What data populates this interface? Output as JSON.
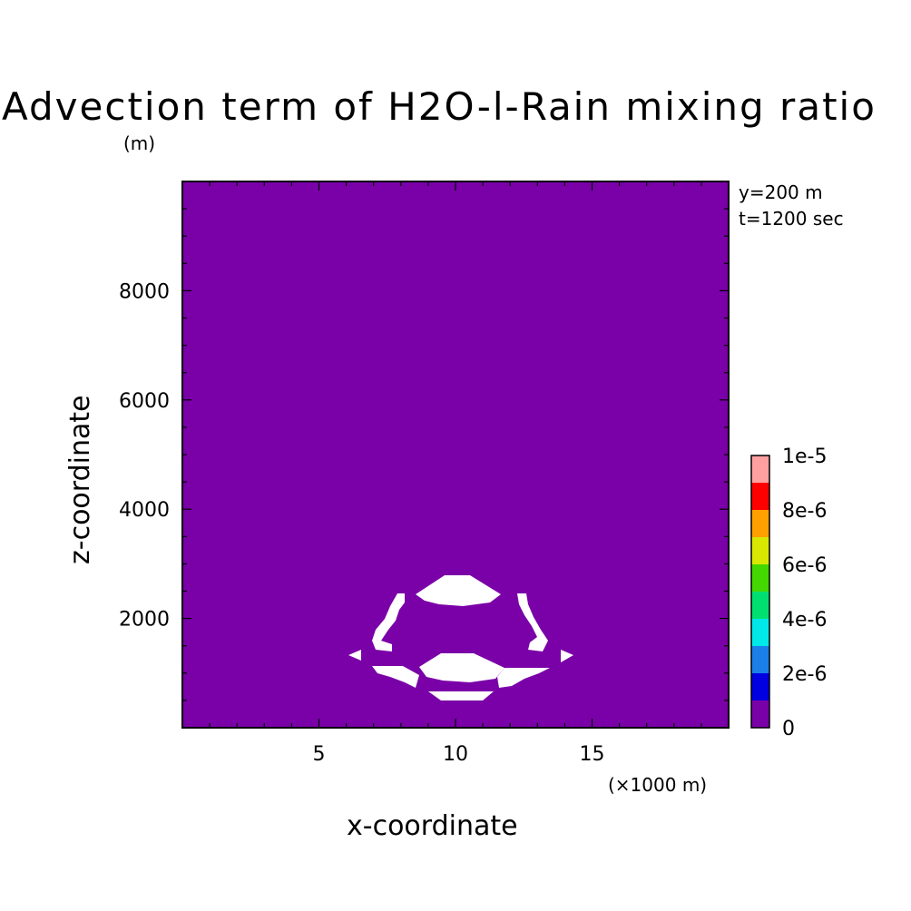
{
  "colors": {
    "background": "#7a00a8",
    "blank": "#ffffff",
    "frame": "#000000"
  },
  "chart_data": {
    "type": "heatmap",
    "title": "Advection term of H2O-l-Rain mixing ratio",
    "title_unit": "(m)",
    "xlabel": "x-coordinate",
    "ylabel": "z-coordinate",
    "x_unit_label": "(×1000 m)",
    "x_ticks": [
      5,
      10,
      15
    ],
    "y_ticks": [
      2000,
      4000,
      6000,
      8000
    ],
    "xlim": [
      0,
      20
    ],
    "ylim": [
      0,
      10000
    ],
    "info": [
      "y=200 m",
      "t=1200 sec"
    ],
    "colorbar": {
      "levels": [
        0,
        1e-06,
        2e-06,
        3e-06,
        4e-06,
        5e-06,
        6e-06,
        7e-06,
        8e-06,
        9e-06,
        1e-05
      ],
      "colors": [
        "#7a00a8",
        "#0000e0",
        "#1a7fe8",
        "#00e8e8",
        "#00e070",
        "#44d800",
        "#d8e800",
        "#ffa000",
        "#ff0000",
        "#ffa0a0"
      ],
      "tick_labels": [
        "0",
        "2e-6",
        "4e-6",
        "6e-6",
        "8e-6",
        "1e-5"
      ]
    },
    "field_summary": "Entire domain at lowest level (0 to 1e-6) except small undefined (white) patches near x=8-14 km, z=500-2800 m",
    "white_regions": [
      {
        "x": [
          8.5,
          11.6
        ],
        "z": [
          2300,
          2800
        ]
      },
      {
        "x": [
          8.5,
          11.6
        ],
        "z": [
          900,
          1400
        ]
      },
      {
        "x": [
          8.9,
          11.0
        ],
        "z": [
          500,
          850
        ]
      },
      {
        "x": [
          6.2,
          14.3
        ],
        "z": [
          1200,
          1400
        ]
      }
    ]
  }
}
